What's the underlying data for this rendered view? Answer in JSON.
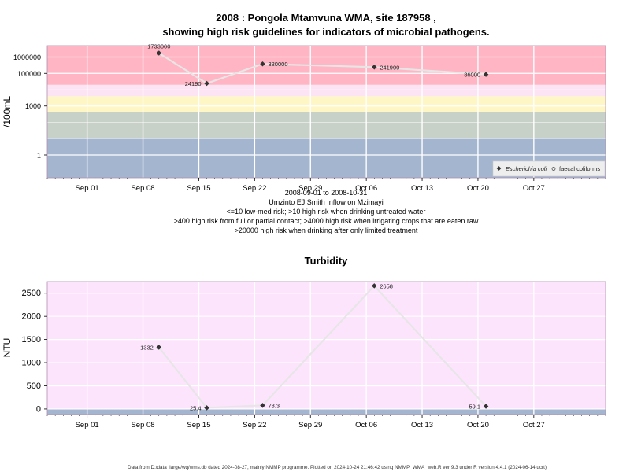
{
  "chart_data": [
    {
      "type": "scatter",
      "title_lines": [
        "2008 : Pongola Mtamvuna WMA, site 187958 ,",
        "showing high risk guidelines for indicators of microbial pathogens."
      ],
      "ylabel": "/100mL",
      "yscale": "log",
      "x_tick_labels": [
        "Sep 01",
        "Sep 08",
        "Sep 15",
        "Sep 22",
        "Sep 29",
        "Oct 06",
        "Oct 13",
        "Oct 20",
        "Oct 27"
      ],
      "y_tick_labels": [
        "1",
        "1000",
        "100000",
        "1000000"
      ],
      "y_ticks": [
        1,
        1000,
        100000,
        1000000
      ],
      "xlim": [
        "2008-08-27",
        "2008-11-05"
      ],
      "ylim": [
        0.04,
        5000000
      ],
      "risk_bands": [
        {
          "from": 0.04,
          "to": 10,
          "color": "#a4b5cf"
        },
        {
          "from": 10,
          "to": 400,
          "color": "#c8d1c8"
        },
        {
          "from": 400,
          "to": 4000,
          "color": "#fff6c5"
        },
        {
          "from": 4000,
          "to": 20000,
          "color": "#fde4f4"
        },
        {
          "from": 20000,
          "to": 5000000,
          "color": "#ffb5c3"
        }
      ],
      "series": [
        {
          "name": "Escherichia coli",
          "x": [
            "2008-09-10",
            "2008-09-16",
            "2008-09-23",
            "2008-10-07",
            "2008-10-21"
          ],
          "y": [
            1733000,
            24190,
            380000,
            241900,
            86000
          ],
          "point_labels": [
            "1733000",
            "24190",
            "380000",
            "241900",
            "86000"
          ]
        },
        {
          "name": "faecal coliforms",
          "x": [],
          "y": []
        }
      ],
      "legend_position": "bottom-right",
      "caption_lines": [
        "2008-09-01 to 2008-10-31",
        "Umzinto EJ Smith Inflow on Mzimayi",
        "<=10 low-med risk; >10 high risk when drinking untreated water",
        ">400 high risk from full or partial contact; >4000 high risk when irrigating crops that are eaten raw",
        ">20000 high risk when drinking after only limited treatment"
      ],
      "colors": {
        "line": "#e6e6e6",
        "marker": "#333333",
        "grid": "#ffffff",
        "frame": "#b08fb0"
      }
    },
    {
      "type": "scatter",
      "title": "Turbidity",
      "ylabel": "NTU",
      "x_tick_labels": [
        "Sep 01",
        "Sep 08",
        "Sep 15",
        "Sep 22",
        "Sep 29",
        "Oct 06",
        "Oct 13",
        "Oct 20",
        "Oct 27"
      ],
      "y_tick_labels": [
        "0",
        "500",
        "1000",
        "1500",
        "2000",
        "2500"
      ],
      "y_ticks": [
        0,
        500,
        1000,
        1500,
        2000,
        2500
      ],
      "xlim": [
        "2008-08-27",
        "2008-11-05"
      ],
      "ylim": [
        -120,
        2750
      ],
      "risk_bands": [
        {
          "from": -120,
          "to": -10,
          "color": "#a4b5cf"
        },
        {
          "from": -10,
          "to": 2750,
          "color": "#fde4fd"
        }
      ],
      "series": [
        {
          "name": "",
          "x": [
            "2008-09-10",
            "2008-09-16",
            "2008-09-23",
            "2008-10-07",
            "2008-10-21"
          ],
          "y": [
            1332,
            25.4,
            78.3,
            2658,
            59.1
          ],
          "point_labels": [
            "1332",
            "25.4",
            "78.3",
            "2658",
            "59.1"
          ]
        }
      ],
      "colors": {
        "line": "#e6e6e6",
        "marker": "#333333",
        "grid": "#ffffff",
        "frame": "#b08fb0"
      }
    }
  ],
  "footer": "Data from D:/data_large/wq/wms.db dated 2024-08-27, mainly NMMP programme. Plotted on 2024-10-24 21:46:42 using NMMP_WMA_web.R ver 9.3 under R version 4.4.1 (2024-06-14 ucrt)"
}
